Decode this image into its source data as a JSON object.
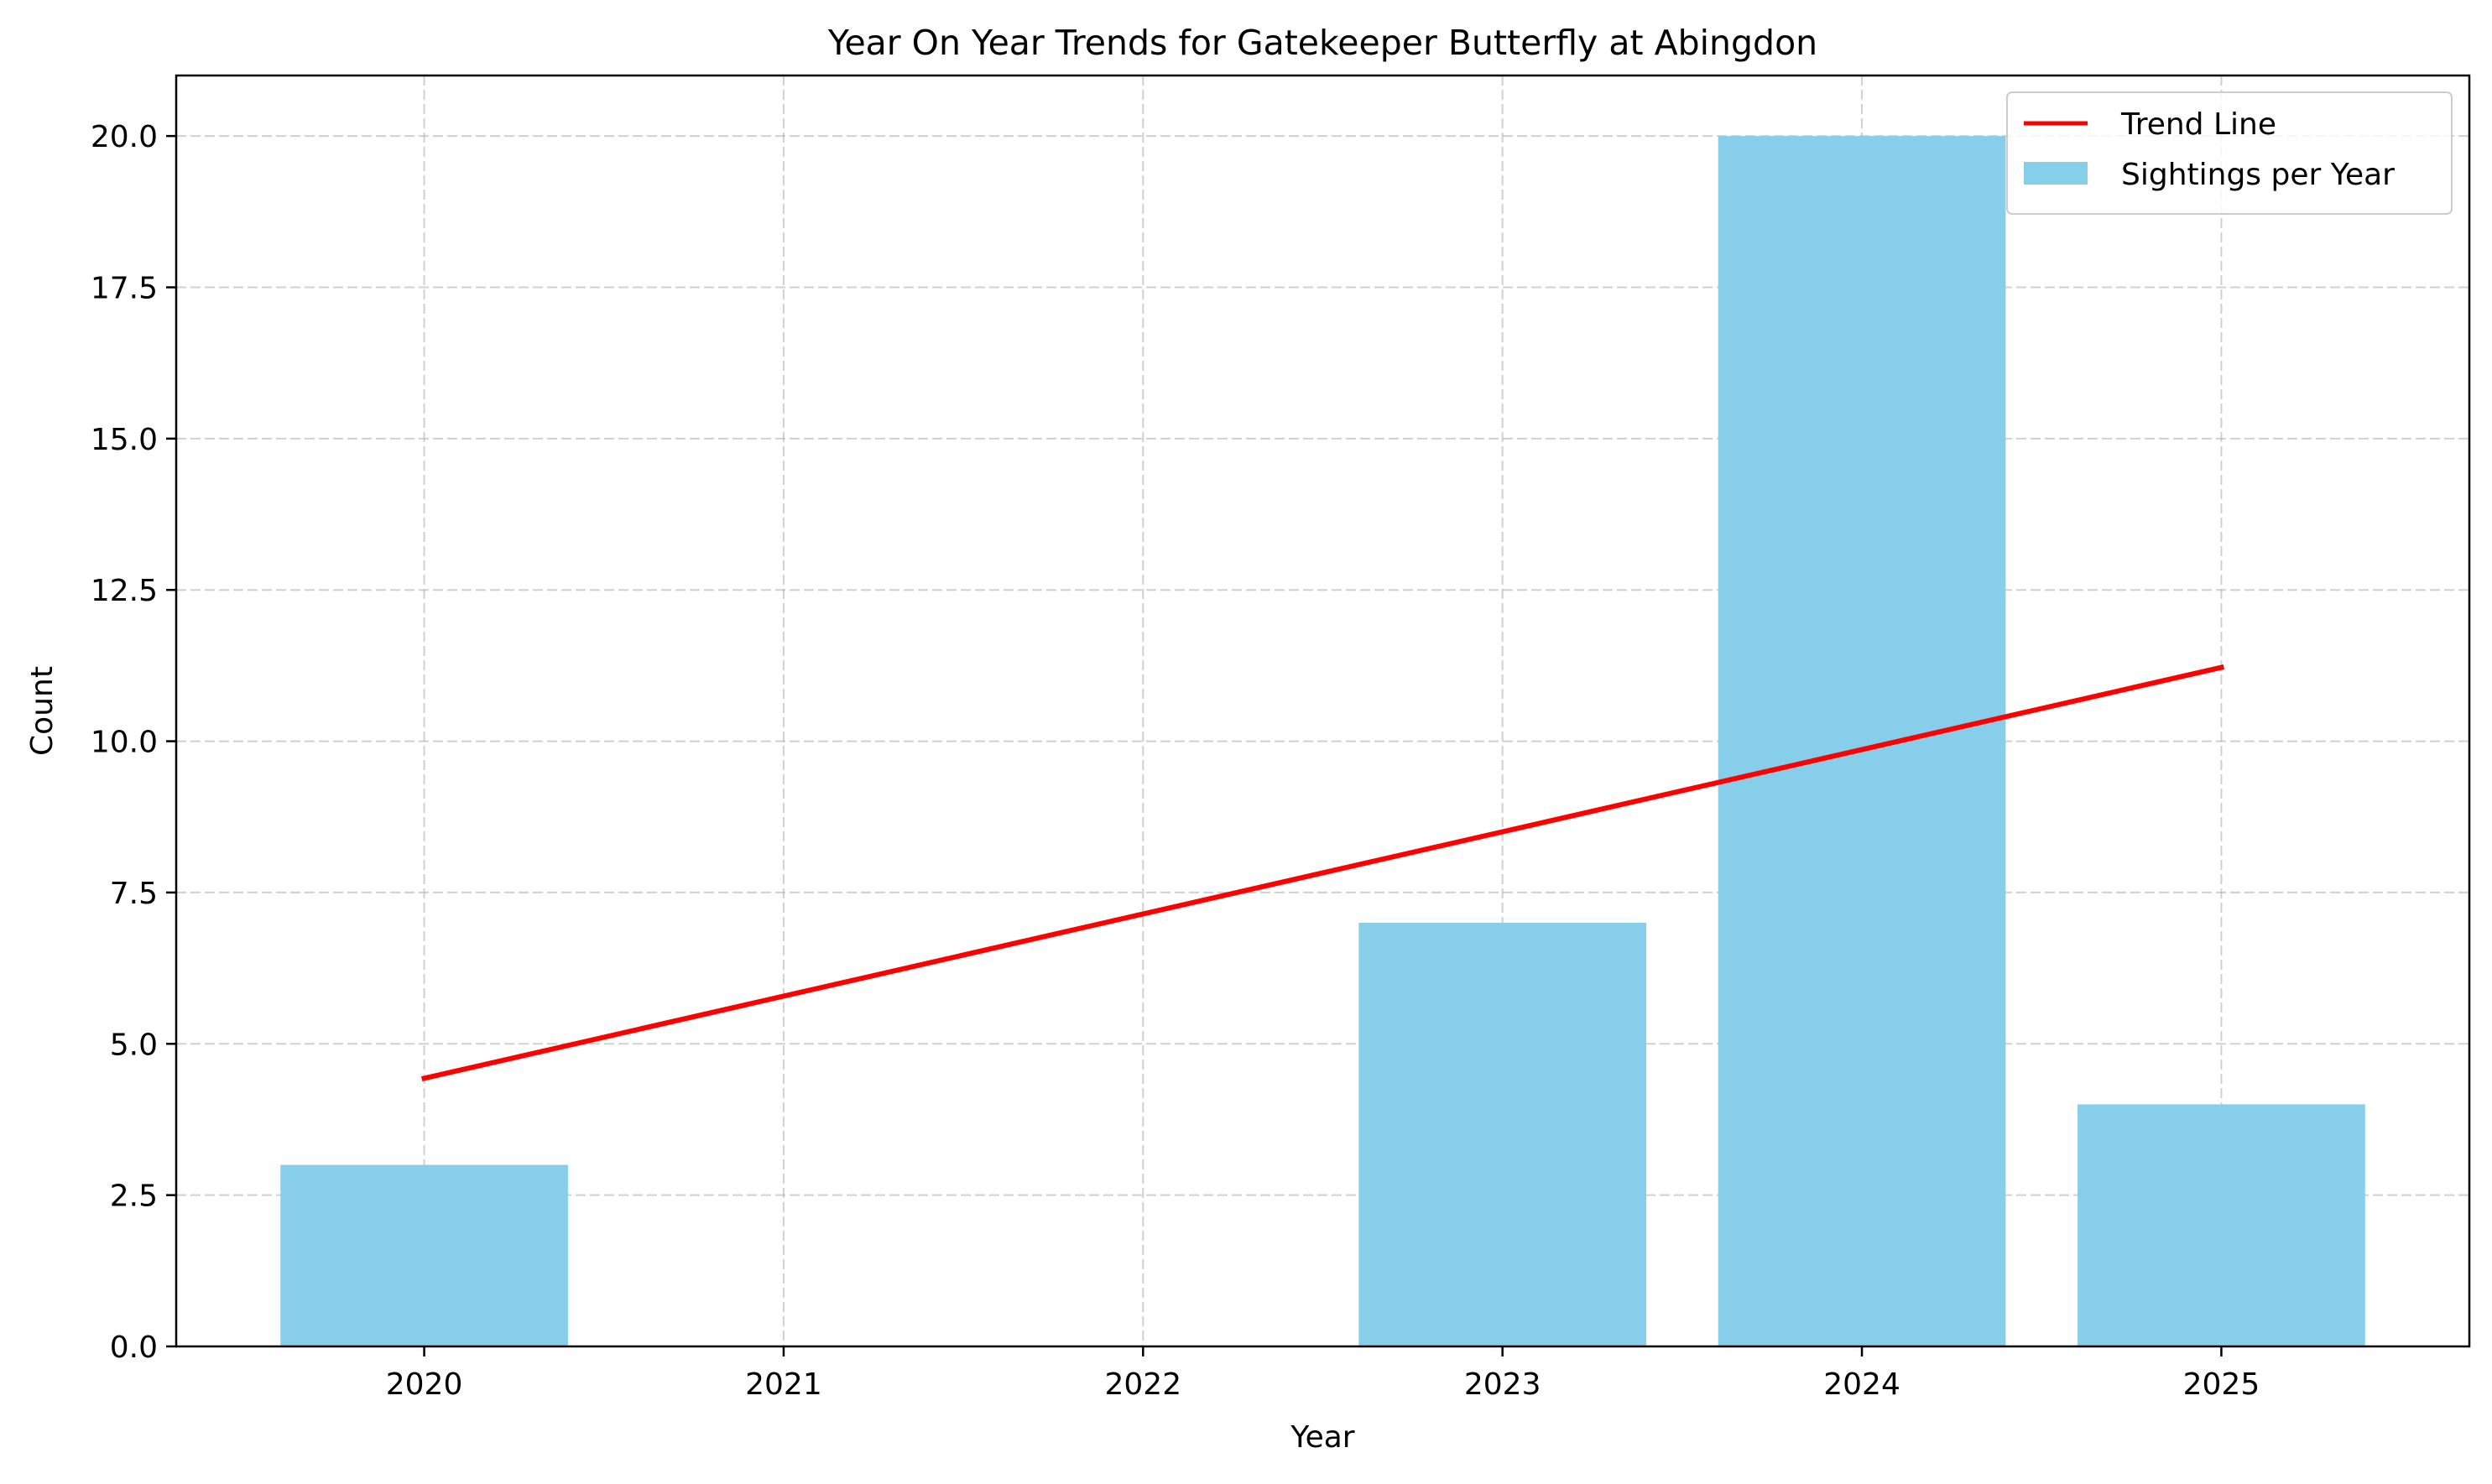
{
  "chart_data": {
    "type": "bar",
    "title": "Year On Year Trends for Gatekeeper Butterfly at Abingdon",
    "xlabel": "Year",
    "ylabel": "Count",
    "categories": [
      2020,
      2021,
      2022,
      2023,
      2024,
      2025
    ],
    "xlim": [
      2019.31,
      2025.69
    ],
    "ylim": [
      0,
      21
    ],
    "yticks": [
      0,
      2.5,
      5,
      7.5,
      10,
      12.5,
      15,
      17.5,
      20
    ],
    "ytick_labels": [
      "0.0",
      "2.5",
      "5.0",
      "7.5",
      "10.0",
      "12.5",
      "15.0",
      "17.5",
      "20.0"
    ],
    "xtick_labels": [
      "2020",
      "2021",
      "2022",
      "2023",
      "2024",
      "2025"
    ],
    "grid": true,
    "legend_position": "top-right",
    "series": [
      {
        "name": "Sightings per Year",
        "kind": "bar",
        "color": "#87CEEB",
        "values": [
          3,
          0,
          0,
          7,
          20,
          4
        ]
      },
      {
        "name": "Trend Line",
        "kind": "line",
        "color": "#FF0000",
        "x": [
          2020,
          2025
        ],
        "y": [
          4.43,
          11.22
        ]
      }
    ]
  }
}
